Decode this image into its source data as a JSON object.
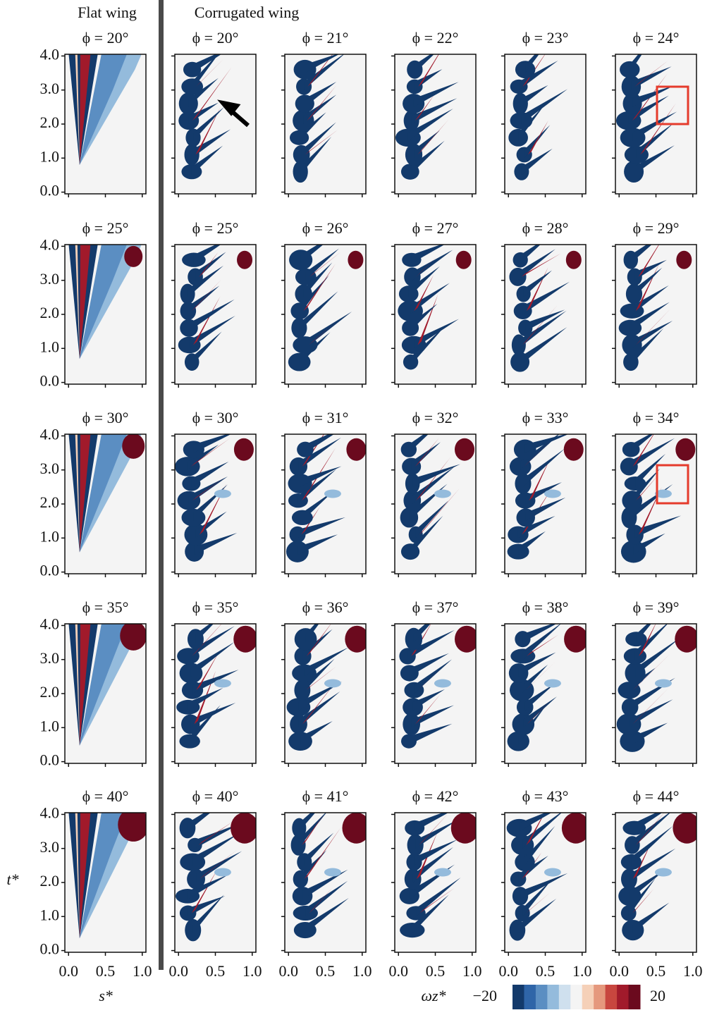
{
  "headers": {
    "flat": "Flat wing",
    "corrugated": "Corrugated wing"
  },
  "panel_titles": [
    [
      "ϕ = 20°",
      "ϕ = 20°",
      "ϕ = 21°",
      "ϕ = 22°",
      "ϕ = 23°",
      "ϕ = 24°"
    ],
    [
      "ϕ = 25°",
      "ϕ = 25°",
      "ϕ = 26°",
      "ϕ = 27°",
      "ϕ = 28°",
      "ϕ = 29°"
    ],
    [
      "ϕ = 30°",
      "ϕ = 30°",
      "ϕ = 31°",
      "ϕ = 32°",
      "ϕ = 33°",
      "ϕ = 34°"
    ],
    [
      "ϕ = 35°",
      "ϕ = 35°",
      "ϕ = 36°",
      "ϕ = 37°",
      "ϕ = 38°",
      "ϕ = 39°"
    ],
    [
      "ϕ = 40°",
      "ϕ = 40°",
      "ϕ = 41°",
      "ϕ = 42°",
      "ϕ = 43°",
      "ϕ = 44°"
    ]
  ],
  "axes": {
    "xlabel": "s*",
    "ylabel": "t*",
    "xlim": [
      -0.05,
      1.05
    ],
    "ylim": [
      -0.05,
      4.05
    ],
    "xticks": [
      {
        "value": 0,
        "label": "0.0"
      },
      {
        "value": 0.5,
        "label": "0.5"
      },
      {
        "value": 1,
        "label": "1.0"
      }
    ],
    "yticks": [
      {
        "value": 0,
        "label": "0.0"
      },
      {
        "value": 1,
        "label": "1.0"
      },
      {
        "value": 2,
        "label": "2.0"
      },
      {
        "value": 3,
        "label": "3.0"
      },
      {
        "value": 4,
        "label": "4.0"
      }
    ]
  },
  "colorbar": {
    "label": "ωz*",
    "ticks": [
      {
        "value": -20,
        "label": "−20"
      },
      {
        "value": 20,
        "label": "20"
      }
    ],
    "colors": [
      "#133a6b",
      "#2f65a8",
      "#5b8ec2",
      "#94bbdc",
      "#cfe0ee",
      "#f4f4f4",
      "#f5d0b8",
      "#e5987d",
      "#c8463f",
      "#a11a2b",
      "#6b0a1e"
    ]
  }
}
